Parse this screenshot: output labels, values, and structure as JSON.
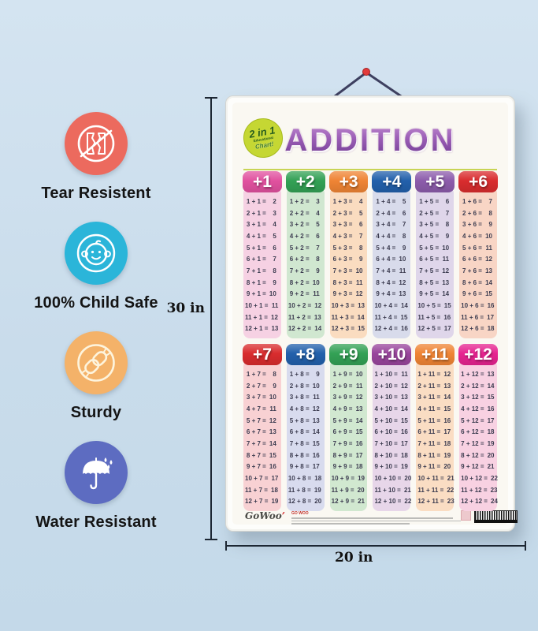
{
  "product_badges": [
    {
      "label": "Tear Resistent",
      "icon": "no-tear-icon",
      "color": "#ec6a5e"
    },
    {
      "label": "100% Child Safe",
      "icon": "baby-face-icon",
      "color": "#2bb5d9"
    },
    {
      "label": "Sturdy",
      "icon": "chain-link-icon",
      "color": "#f4b269"
    },
    {
      "label": "Water Resistant",
      "icon": "umbrella-icon",
      "color": "#5d6cc1"
    }
  ],
  "dimensions": {
    "height_label": "30 in",
    "width_label": "20 in"
  },
  "poster": {
    "corner_badge": {
      "line1": "2 in 1",
      "line2": "Educational",
      "line3": "Chart!"
    },
    "title": "ADDITION",
    "title_colors": {
      "top": "#c08ad0",
      "bottom": "#6f3b91"
    },
    "footer": {
      "logo": "GoWoo",
      "publisher_line": "GO WOO"
    },
    "columns": [
      {
        "header": "+1",
        "header_color": "#e1519f",
        "body_color": "#f6d1e3",
        "rows": [
          "1 + 1 = 2",
          "2 + 1 = 3",
          "3 + 1 = 4",
          "4 + 1 = 5",
          "5 + 1 = 6",
          "6 + 1 = 7",
          "7 + 1 = 8",
          "8 + 1 = 9",
          "9 + 1 = 10",
          "10 + 1 = 11",
          "11 + 1 = 12",
          "12 + 1 = 13"
        ]
      },
      {
        "header": "+2",
        "header_color": "#33a155",
        "body_color": "#d0e7d0",
        "rows": [
          "1 + 2 = 3",
          "2 + 2 = 4",
          "3 + 2 = 5",
          "4 + 2 = 6",
          "5 + 2 = 7",
          "6 + 2 = 8",
          "7 + 2 = 9",
          "8 + 2 = 10",
          "9 + 2 = 11",
          "10 + 2 = 12",
          "11 + 2 = 13",
          "12 + 2 = 14"
        ]
      },
      {
        "header": "+3",
        "header_color": "#ef8434",
        "body_color": "#fadcc0",
        "rows": [
          "1 + 3 = 4",
          "2 + 3 = 5",
          "3 + 3 = 6",
          "4 + 3 = 7",
          "5 + 3 = 8",
          "6 + 3 = 9",
          "7 + 3 = 10",
          "8 + 3 = 11",
          "9 + 3 = 12",
          "10 + 3 = 13",
          "11 + 3 = 14",
          "12 + 3 = 15"
        ]
      },
      {
        "header": "+4",
        "header_color": "#2260ab",
        "body_color": "#d8dbeb",
        "rows": [
          "1 + 4 = 5",
          "2 + 4 = 6",
          "3 + 4 = 7",
          "4 + 4 = 8",
          "5 + 4 = 9",
          "6 + 4 = 10",
          "7 + 4 = 11",
          "8 + 4 = 12",
          "9 + 4 = 13",
          "10 + 4 = 14",
          "11 + 4 = 15",
          "12 + 4 = 16"
        ]
      },
      {
        "header": "+5",
        "header_color": "#8c5cab",
        "body_color": "#dfd6ea",
        "rows": [
          "1 + 5 = 6",
          "2 + 5 = 7",
          "3 + 5 = 8",
          "4 + 5 = 9",
          "5 + 5 = 10",
          "6 + 5 = 11",
          "7 + 5 = 12",
          "8 + 5 = 13",
          "9 + 5 = 14",
          "10 + 5 = 15",
          "11 + 5 = 16",
          "12 + 5 = 17"
        ]
      },
      {
        "header": "+6",
        "header_color": "#d92c2e",
        "body_color": "#f8d5c5",
        "rows": [
          "1 + 6 = 7",
          "2 + 6 = 8",
          "3 + 6 = 9",
          "4 + 6 = 10",
          "5 + 6 = 11",
          "6 + 6 = 12",
          "7 + 6 = 13",
          "8 + 6 = 14",
          "9 + 6 = 15",
          "10 + 6 = 16",
          "11 + 6 = 17",
          "12 + 6 = 18"
        ]
      },
      {
        "header": "+7",
        "header_color": "#d92c2e",
        "body_color": "#f8d1d3",
        "rows": [
          "1 + 7 = 8",
          "2 + 7 = 9",
          "3 + 7 = 10",
          "4 + 7 = 11",
          "5 + 7 = 12",
          "6 + 7 = 13",
          "7 + 7 = 14",
          "8 + 7 = 15",
          "9 + 7 = 16",
          "10 + 7 = 17",
          "11 + 7 = 18",
          "12 + 7 = 19"
        ]
      },
      {
        "header": "+8",
        "header_color": "#2260ab",
        "body_color": "#d8dbee",
        "rows": [
          "1 + 8 = 9",
          "2 + 8 = 10",
          "3 + 8 = 11",
          "4 + 8 = 12",
          "5 + 8 = 13",
          "6 + 8 = 14",
          "7 + 8 = 15",
          "8 + 8 = 16",
          "9 + 8 = 17",
          "10 + 8 = 18",
          "11 + 8 = 19",
          "12 + 8 = 20"
        ]
      },
      {
        "header": "+9",
        "header_color": "#33a155",
        "body_color": "#d1e8d0",
        "rows": [
          "1 + 9 = 10",
          "2 + 9 = 11",
          "3 + 9 = 12",
          "4 + 9 = 13",
          "5 + 9 = 14",
          "6 + 9 = 15",
          "7 + 9 = 16",
          "8 + 9 = 17",
          "9 + 9 = 18",
          "10 + 9 = 19",
          "11 + 9 = 20",
          "12 + 9 = 21"
        ]
      },
      {
        "header": "+10",
        "header_color": "#99459c",
        "body_color": "#e7d6e9",
        "rows": [
          "1 + 10 = 11",
          "2 + 10 = 12",
          "3 + 10 = 13",
          "4 + 10 = 14",
          "5 + 10 = 15",
          "6 + 10 = 16",
          "7 + 10 = 17",
          "8 + 10 = 18",
          "9 + 10 = 19",
          "10 + 10 = 20",
          "11 + 10 = 21",
          "12 + 10 = 22"
        ]
      },
      {
        "header": "+11",
        "header_color": "#ef8434",
        "body_color": "#faddc3",
        "rows": [
          "1 + 11 = 12",
          "2 + 11 = 13",
          "3 + 11 = 14",
          "4 + 11 = 15",
          "5 + 11 = 16",
          "6 + 11 = 17",
          "7 + 11 = 18",
          "8 + 11 = 19",
          "9 + 11 = 20",
          "10 + 11 = 21",
          "11 + 11 = 22",
          "12 + 11 = 23"
        ]
      },
      {
        "header": "+12",
        "header_color": "#e62490",
        "body_color": "#f8d1e2",
        "rows": [
          "1 + 12 = 13",
          "2 + 12 = 14",
          "3 + 12 = 15",
          "4 + 12 = 16",
          "5 + 12 = 17",
          "6 + 12 = 18",
          "7 + 12 = 19",
          "8 + 12 = 20",
          "9 + 12 = 21",
          "10 + 12 = 22",
          "11 + 12 = 23",
          "12 + 12 = 24"
        ]
      }
    ]
  }
}
